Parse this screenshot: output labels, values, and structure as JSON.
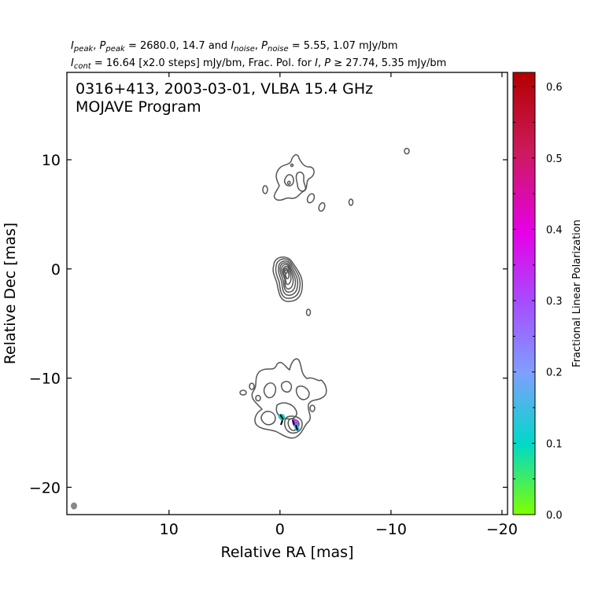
{
  "header": {
    "line1": {
      "I": "I",
      "peak_sub": "peak",
      "P": "P",
      "eq1": "=",
      "peak_vals": "2680.0, 14.7",
      "and": "and",
      "noise_sub": "noise",
      "noise_vals": "5.55, 1.07",
      "unit": "mJy/bm"
    },
    "line2": {
      "I": "I",
      "cont_sub": "cont",
      "eq": "=",
      "cont_val": "16.64 [x2.0 steps] mJy/bm, Frac. Pol. for",
      "P": "P",
      "ge": "≥",
      "ge_vals": "27.74, 5.35 mJy/bm"
    }
  },
  "annotation": {
    "line1": "0316+413, 2003-03-01, VLBA 15.4 GHz",
    "line2": "MOJAVE Program"
  },
  "colorbar": {
    "label": "Fractional Linear Polarization",
    "ticks": [
      {
        "v": 0.0,
        "label": "0.0"
      },
      {
        "v": 0.1,
        "label": "0.1"
      },
      {
        "v": 0.2,
        "label": "0.2"
      },
      {
        "v": 0.3,
        "label": "0.3"
      },
      {
        "v": 0.4,
        "label": "0.4"
      },
      {
        "v": 0.5,
        "label": "0.5"
      },
      {
        "v": 0.6,
        "label": "0.6"
      }
    ],
    "colors": [
      "#7fff00",
      "#00d9c8",
      "#7f9fff",
      "#a64dff",
      "#e600e6",
      "#cc1a5c",
      "#b30000"
    ]
  },
  "chart_data": {
    "type": "contour",
    "xlabel": "Relative RA [mas]",
    "ylabel": "Relative Dec [mas]",
    "xlim": [
      19.2,
      -20.5
    ],
    "ylim": [
      -22.5,
      18
    ],
    "x_ticks": [
      {
        "v": 10,
        "label": "10"
      },
      {
        "v": 0,
        "label": "0"
      },
      {
        "v": -10,
        "label": "−10"
      },
      {
        "v": -20,
        "label": "−20"
      }
    ],
    "y_ticks": [
      {
        "v": 10,
        "label": "10"
      },
      {
        "v": 0,
        "label": "0"
      },
      {
        "v": -10,
        "label": "−10"
      },
      {
        "v": -20,
        "label": "−20"
      }
    ],
    "peak_I_mJy_per_beam": 2680.0,
    "peak_P_mJy_per_beam": 14.7,
    "noise_I_mJy_per_beam": 5.55,
    "noise_P_mJy_per_beam": 1.07,
    "contour_base_mJy_per_beam": 16.64,
    "contour_step_factor": 2.0,
    "frac_pol_cut_I_mJy_per_beam": 27.74,
    "frac_pol_cut_P_mJy_per_beam": 5.35,
    "colorbar_range": [
      0.0,
      0.62
    ],
    "core": {
      "ra": 0.0,
      "dec": -0.9,
      "levels": 8
    },
    "components": [
      {
        "ra": -0.6,
        "dec": 8.2,
        "levels": 2
      },
      {
        "ra": -0.6,
        "dec": -11.8,
        "levels": 2
      },
      {
        "ra": 1.0,
        "dec": -14.0,
        "levels": 2
      }
    ],
    "small_features": [
      {
        "ra": -11.3,
        "dec": 10.6
      },
      {
        "ra": -6.2,
        "dec": 6.0
      },
      {
        "ra": -2.3,
        "dec": -4.1
      },
      {
        "ra": 1.7,
        "dec": 7.2
      },
      {
        "ra": -3.5,
        "dec": 5.7
      },
      {
        "ra": 3.7,
        "dec": -11.3
      }
    ],
    "polarization_patches": [
      {
        "ra": 0.1,
        "dec": -13.5,
        "frac_pol": 0.1
      },
      {
        "ra": -1.1,
        "dec": -14.3,
        "frac_pol": 0.33
      },
      {
        "ra": -1.4,
        "dec": -14.7,
        "frac_pol": 0.12
      }
    ],
    "beam": {
      "ra": 18.6,
      "dec": -21.8
    }
  }
}
